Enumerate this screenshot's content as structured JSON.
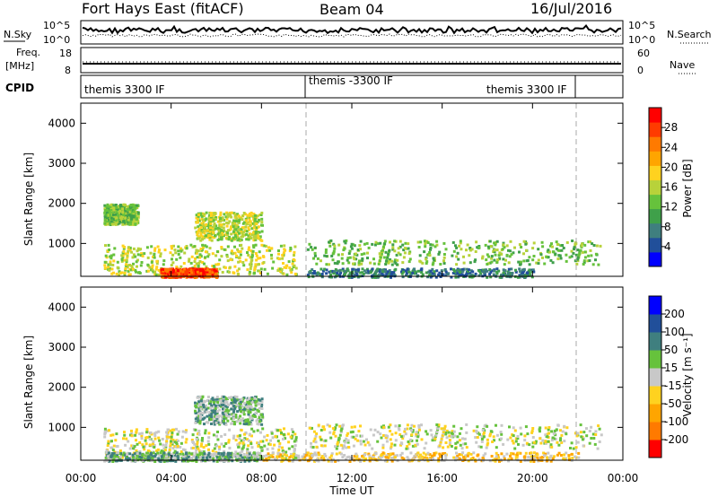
{
  "header": {
    "station": "Fort Hays East (fitACF)",
    "beam": "Beam 04",
    "date": "16/Jul/2016"
  },
  "noise_panel": {
    "left_label": "N.Sky",
    "right_label": "N.Search",
    "left_ticks": [
      "10^5",
      "10^0"
    ],
    "right_ticks": [
      "10^5",
      "10^0"
    ]
  },
  "freq_panel": {
    "left_label_1": "Freq.",
    "left_label_2": "[MHz]",
    "right_label": "Nave",
    "left_ticks": [
      "18",
      "8"
    ],
    "right_ticks": [
      "60",
      "0"
    ]
  },
  "cpid_panel": {
    "label": "CPID",
    "segments": [
      "themis 3300 IF",
      "themis -3300 IF",
      "themis 3300 IF"
    ]
  },
  "power_panel": {
    "ylabel": "Slant Range [km]",
    "cbar_label": "Power [dB]",
    "cbar_ticks": [
      "28",
      "24",
      "20",
      "16",
      "12",
      "8",
      "4"
    ],
    "yticks": [
      "4000",
      "3000",
      "2000",
      "1000"
    ]
  },
  "velocity_panel": {
    "ylabel": "Slant Range [km]",
    "cbar_label": "Velocity [m s⁻¹]",
    "cbar_ticks": [
      "200",
      "100",
      "50",
      "15",
      "-15",
      "-50",
      "-100",
      "-200"
    ],
    "yticks": [
      "4000",
      "3000",
      "2000",
      "1000"
    ]
  },
  "xaxis": {
    "ticks": [
      "00:00",
      "04:00",
      "08:00",
      "12:00",
      "16:00",
      "20:00",
      "00:00"
    ],
    "label": "Time UT"
  },
  "colors": {
    "power_scale": [
      "#0000ff",
      "#214f9a",
      "#3f7f7f",
      "#3fa04a",
      "#66c23c",
      "#b8d23a",
      "#ffd21f",
      "#ffa500",
      "#ff7a00",
      "#ff3b00",
      "#ff0000"
    ],
    "velocity_scale": [
      "#ff0000",
      "#ff7a00",
      "#ffa500",
      "#ffd21f",
      "#c8c8c8",
      "#66c23c",
      "#3f7f7f",
      "#214f9a",
      "#0000ff"
    ]
  },
  "chart_data": [
    {
      "type": "heatmap",
      "title": "Power",
      "x_range": [
        "00:00",
        "00:00"
      ],
      "y_range_km": [
        180,
        4500
      ],
      "ylabel": "Slant Range [km]",
      "colorbar_range_db": [
        0,
        32
      ],
      "colorbar_ticks": [
        28,
        24,
        20,
        16,
        12,
        8,
        4
      ],
      "regions": [
        {
          "t_start_h": 1.0,
          "t_end_h": 9.5,
          "r_min_km": 250,
          "r_max_km": 1000,
          "power_db": 16
        },
        {
          "t_start_h": 3.5,
          "t_end_h": 6.0,
          "r_min_km": 180,
          "r_max_km": 400,
          "power_db": 28
        },
        {
          "t_start_h": 1.0,
          "t_end_h": 2.5,
          "r_min_km": 1500,
          "r_max_km": 2000,
          "power_db": 12
        },
        {
          "t_start_h": 5.0,
          "t_end_h": 8.0,
          "r_min_km": 1100,
          "r_max_km": 1800,
          "power_db": 16
        },
        {
          "t_start_h": 10.0,
          "t_end_h": 23.0,
          "r_min_km": 500,
          "r_max_km": 1100,
          "power_db": 12
        },
        {
          "t_start_h": 10.0,
          "t_end_h": 20.0,
          "r_min_km": 180,
          "r_max_km": 400,
          "power_db": 8
        }
      ],
      "markers_h": [
        10.0,
        22.0
      ]
    },
    {
      "type": "heatmap",
      "title": "Velocity",
      "x_range": [
        "00:00",
        "00:00"
      ],
      "y_range_km": [
        180,
        4500
      ],
      "ylabel": "Slant Range [km]",
      "colorbar_range_ms": [
        -250,
        250
      ],
      "colorbar_ticks": [
        200,
        100,
        50,
        15,
        -15,
        -50,
        -100,
        -200
      ],
      "regions": [
        {
          "t_start_h": 1.0,
          "t_end_h": 9.5,
          "r_min_km": 250,
          "r_max_km": 1000,
          "velocity_ms": 0
        },
        {
          "t_start_h": 1.0,
          "t_end_h": 8.0,
          "r_min_km": 180,
          "r_max_km": 400,
          "velocity_ms": 40
        },
        {
          "t_start_h": 5.0,
          "t_end_h": 8.0,
          "r_min_km": 1100,
          "r_max_km": 1800,
          "velocity_ms": 40
        },
        {
          "t_start_h": 10.0,
          "t_end_h": 23.0,
          "r_min_km": 500,
          "r_max_km": 1100,
          "velocity_ms": 0
        },
        {
          "t_start_h": 8.0,
          "t_end_h": 22.0,
          "r_min_km": 180,
          "r_max_km": 400,
          "velocity_ms": -40
        }
      ],
      "markers_h": [
        10.0,
        22.0
      ]
    }
  ]
}
